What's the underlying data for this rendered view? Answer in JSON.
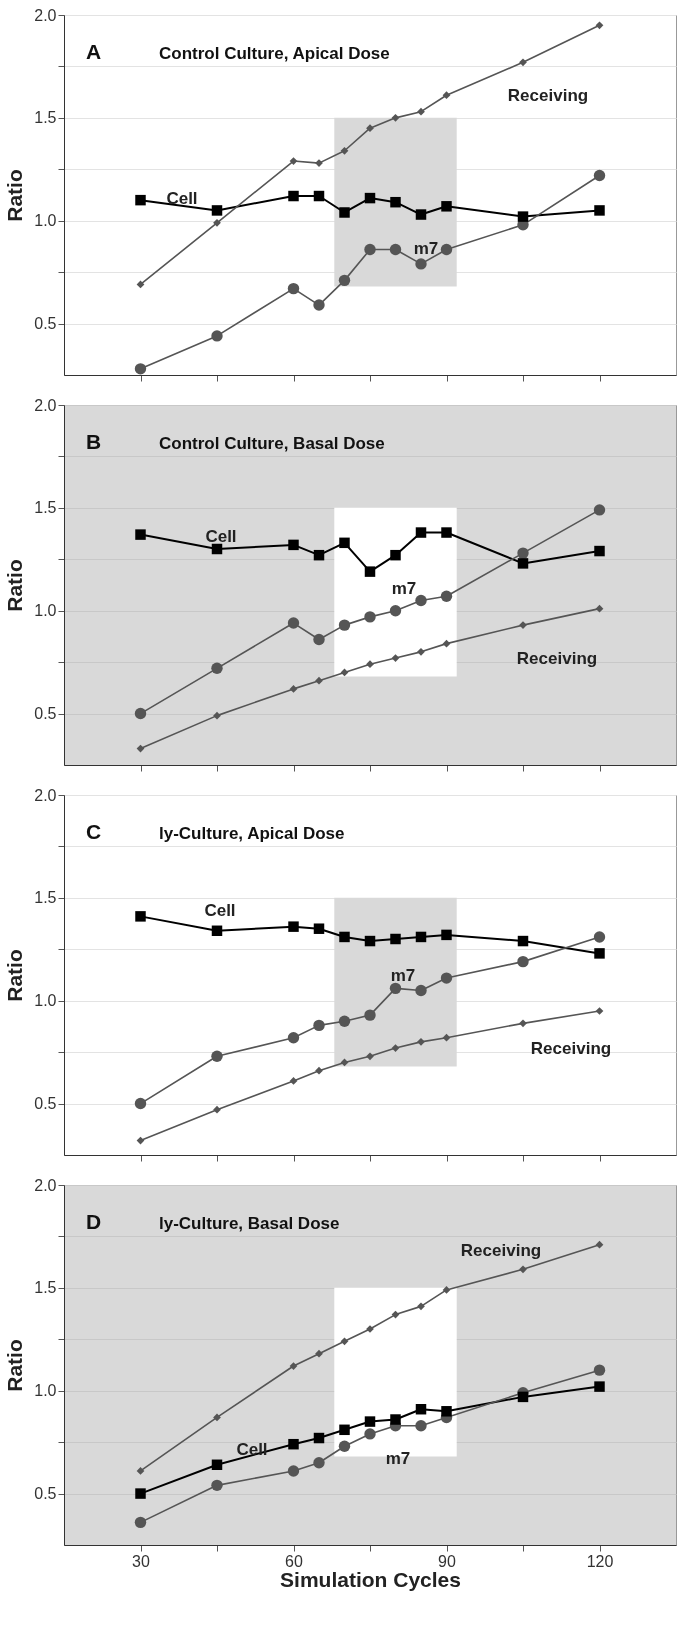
{
  "chart_data": [
    {
      "type": "line",
      "title": "A",
      "subtitle": "Control Culture, Apical Dose",
      "ylabel": "Ratio",
      "x": [
        30,
        45,
        60,
        65,
        70,
        75,
        80,
        85,
        90,
        105,
        120
      ],
      "xlim": [
        15,
        135
      ],
      "xticks": [
        30,
        {
          "value": 45,
          "label": null
        },
        60,
        {
          "value": 75,
          "label": null
        },
        90,
        {
          "value": 105,
          "label": null
        },
        120
      ],
      "ylim": [
        0.25,
        2.0
      ],
      "yticks": [
        {
          "value": 0.5,
          "label": "0.5"
        },
        {
          "value": 0.75,
          "label": null
        },
        {
          "value": 1.0,
          "label": "1.0"
        },
        {
          "value": 1.25,
          "label": null
        },
        {
          "value": 1.5,
          "label": "1.5"
        },
        {
          "value": 1.75,
          "label": null
        },
        {
          "value": 2.0,
          "label": "2.0"
        }
      ],
      "grid": "y",
      "legend": false,
      "tick_labels": "y",
      "bands": [
        {
          "axis": "x",
          "from": 68,
          "to": 92,
          "color": "#d9d9d9"
        }
      ],
      "series": [
        {
          "name": "Cell",
          "color": "#000000",
          "marker": "square",
          "values": [
            1.1,
            1.05,
            1.12,
            1.12,
            1.04,
            1.11,
            1.09,
            1.03,
            1.07,
            1.02,
            1.05
          ]
        },
        {
          "name": "m7",
          "color": "#555555",
          "marker": "circle",
          "values": [
            0.28,
            0.44,
            0.67,
            0.59,
            0.71,
            0.86,
            0.86,
            0.79,
            0.86,
            0.98,
            1.22
          ]
        },
        {
          "name": "Receiving",
          "color": "#555555",
          "marker": "diamond",
          "values": [
            0.69,
            0.99,
            1.29,
            1.28,
            1.34,
            1.45,
            1.5,
            1.53,
            1.61,
            1.77,
            1.95
          ]
        }
      ]
    },
    {
      "type": "line",
      "title": "B",
      "subtitle": "Control Culture, Basal Dose",
      "ylabel": "Ratio",
      "x": [
        30,
        45,
        60,
        65,
        70,
        75,
        80,
        85,
        90,
        105,
        120
      ],
      "xlim": [
        15,
        135
      ],
      "xticks": [
        30,
        {
          "value": 45,
          "label": null
        },
        60,
        {
          "value": 75,
          "label": null
        },
        90,
        {
          "value": 105,
          "label": null
        },
        120
      ],
      "ylim": [
        0.25,
        2.0
      ],
      "yticks": [
        {
          "value": 0.5,
          "label": "0.5"
        },
        {
          "value": 0.75,
          "label": null
        },
        {
          "value": 1.0,
          "label": "1.0"
        },
        {
          "value": 1.25,
          "label": null
        },
        {
          "value": 1.5,
          "label": "1.5"
        },
        {
          "value": 1.75,
          "label": null
        },
        {
          "value": 2.0,
          "label": "2.0"
        }
      ],
      "grid": "y",
      "legend": false,
      "tick_labels": "y",
      "bands": [
        {
          "axis": "x",
          "from": 68,
          "to": 92,
          "color": "#ffffff"
        }
      ],
      "series": [
        {
          "name": "Cell",
          "color": "#000000",
          "marker": "square",
          "values": [
            1.37,
            1.3,
            1.32,
            1.27,
            1.33,
            1.19,
            1.27,
            1.38,
            1.38,
            1.23,
            1.29
          ]
        },
        {
          "name": "m7",
          "color": "#555555",
          "marker": "circle",
          "values": [
            0.5,
            0.72,
            0.94,
            0.86,
            0.93,
            0.97,
            1.0,
            1.05,
            1.07,
            1.28,
            1.49
          ]
        },
        {
          "name": "Receiving",
          "color": "#555555",
          "marker": "diamond",
          "values": [
            0.33,
            0.49,
            0.62,
            0.66,
            0.7,
            0.74,
            0.77,
            0.8,
            0.84,
            0.93,
            1.01
          ]
        }
      ]
    },
    {
      "type": "line",
      "title": "C",
      "subtitle": "ly-Culture, Apical Dose",
      "ylabel": "Ratio",
      "x": [
        30,
        45,
        60,
        65,
        70,
        75,
        80,
        85,
        90,
        105,
        120
      ],
      "xlim": [
        15,
        135
      ],
      "xticks": [
        30,
        {
          "value": 45,
          "label": null
        },
        60,
        {
          "value": 75,
          "label": null
        },
        90,
        {
          "value": 105,
          "label": null
        },
        120
      ],
      "ylim": [
        0.25,
        2.0
      ],
      "yticks": [
        {
          "value": 0.5,
          "label": "0.5"
        },
        {
          "value": 0.75,
          "label": null
        },
        {
          "value": 1.0,
          "label": "1.0"
        },
        {
          "value": 1.25,
          "label": null
        },
        {
          "value": 1.5,
          "label": "1.5"
        },
        {
          "value": 1.75,
          "label": null
        },
        {
          "value": 2.0,
          "label": "2.0"
        }
      ],
      "grid": "y",
      "legend": false,
      "tick_labels": "y",
      "bands": [
        {
          "axis": "x",
          "from": 68,
          "to": 92,
          "color": "#d9d9d9"
        }
      ],
      "series": [
        {
          "name": "Cell",
          "color": "#000000",
          "marker": "square",
          "values": [
            1.41,
            1.34,
            1.36,
            1.35,
            1.31,
            1.29,
            1.3,
            1.31,
            1.32,
            1.29,
            1.23
          ]
        },
        {
          "name": "m7",
          "color": "#555555",
          "marker": "circle",
          "values": [
            0.5,
            0.73,
            0.82,
            0.88,
            0.9,
            0.93,
            1.06,
            1.05,
            1.11,
            1.19,
            1.31
          ]
        },
        {
          "name": "Receiving",
          "color": "#555555",
          "marker": "diamond",
          "values": [
            0.32,
            0.47,
            0.61,
            0.66,
            0.7,
            0.73,
            0.77,
            0.8,
            0.82,
            0.89,
            0.95
          ]
        }
      ]
    },
    {
      "type": "line",
      "title": "D",
      "subtitle": "ly-Culture, Basal Dose",
      "xlabel": "Simulation Cycles",
      "ylabel": "Ratio",
      "x": [
        30,
        45,
        60,
        65,
        70,
        75,
        80,
        85,
        90,
        105,
        120
      ],
      "xlim": [
        15,
        135
      ],
      "xticks": [
        30,
        {
          "value": 45,
          "label": null
        },
        60,
        {
          "value": 75,
          "label": null
        },
        90,
        {
          "value": 105,
          "label": null
        },
        120
      ],
      "ylim": [
        0.25,
        2.0
      ],
      "yticks": [
        {
          "value": 0.5,
          "label": "0.5"
        },
        {
          "value": 0.75,
          "label": null
        },
        {
          "value": 1.0,
          "label": "1.0"
        },
        {
          "value": 1.25,
          "label": null
        },
        {
          "value": 1.5,
          "label": "1.5"
        },
        {
          "value": 1.75,
          "label": null
        },
        {
          "value": 2.0,
          "label": "2.0"
        }
      ],
      "grid": "y",
      "legend": false,
      "bands": [
        {
          "axis": "x",
          "from": 68,
          "to": 92,
          "color": "#ffffff"
        }
      ],
      "series": [
        {
          "name": "Cell",
          "color": "#000000",
          "marker": "square",
          "values": [
            0.5,
            0.64,
            0.74,
            0.77,
            0.81,
            0.85,
            0.86,
            0.91,
            0.9,
            0.97,
            1.02
          ]
        },
        {
          "name": "m7",
          "color": "#555555",
          "marker": "circle",
          "values": [
            0.36,
            0.54,
            0.61,
            0.65,
            0.73,
            0.79,
            0.83,
            0.83,
            0.87,
            0.99,
            1.1
          ]
        },
        {
          "name": "Receiving",
          "color": "#555555",
          "marker": "diamond",
          "values": [
            0.61,
            0.87,
            1.12,
            1.18,
            1.24,
            1.3,
            1.37,
            1.41,
            1.49,
            1.59,
            1.71
          ]
        }
      ]
    }
  ]
}
